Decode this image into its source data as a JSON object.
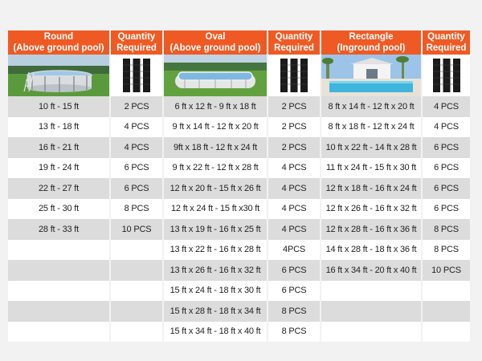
{
  "headers": [
    {
      "line1": "Round",
      "line2": "(Above ground pool)"
    },
    {
      "line1": "Quantity",
      "line2": "Required"
    },
    {
      "line1": "Oval",
      "line2": "(Above ground pool)"
    },
    {
      "line1": "Quantity",
      "line2": "Required"
    },
    {
      "line1": "Rectangle",
      "line2": "(Inground pool)"
    },
    {
      "line1": "Quantity",
      "line2": "Required"
    }
  ],
  "images": [
    "round-pool-photo",
    "solar-panel-icon",
    "oval-pool-photo",
    "solar-panel-icon",
    "rectangle-pool-photo",
    "solar-panel-icon"
  ],
  "colors": {
    "header": "#ef5a24",
    "row_shaded": "#dcdcdc",
    "row_plain": "#ffffff"
  },
  "rows": [
    [
      "10 ft - 15 ft",
      "2 PCS",
      "6 ft x 12 ft - 9 ft x 18 ft",
      "2 PCS",
      "8 ft x 14 ft - 12 ft x 20 ft",
      "4 PCS"
    ],
    [
      "13 ft - 18 ft",
      "4 PCS",
      "9 ft x 14 ft - 12 ft x 20 ft",
      "2 PCS",
      "8 ft x 18 ft - 12 ft x 24 ft",
      "4 PCS"
    ],
    [
      "16 ft - 21 ft",
      "4 PCS",
      "9ft x 18 ft - 12 ft x 24 ft",
      "2 PCS",
      "10 ft x 22 ft - 14 ft x 28 ft",
      "6 PCS"
    ],
    [
      "19 ft - 24 ft",
      "6 PCS",
      "9 ft x 22 ft - 12 ft x 28 ft",
      "4 PCS",
      "11 ft x 24 ft - 15 ft x 30 ft",
      "6 PCS"
    ],
    [
      "22 ft - 27 ft",
      "6 PCS",
      "12 ft x 20 ft - 15 ft x 26 ft",
      "4 PCS",
      "12 ft x 18 ft - 16 ft x 24 ft",
      "6 PCS"
    ],
    [
      "25 ft - 30 ft",
      "8 PCS",
      "12 ft x 24 ft - 15 ft x30 ft",
      "4 PCS",
      "12 ft x 26 ft - 16 ft x 32 ft",
      "6 PCS"
    ],
    [
      "28 ft - 33 ft",
      "10 PCS",
      "13 ft x 19 ft - 16 ft x 25 ft",
      "4 PCS",
      "12 ft x 28 ft - 16 ft x 36 ft",
      "8 PCS"
    ],
    [
      "",
      "",
      "13 ft x 22 ft - 16 ft x 28 ft",
      "4PCS",
      "14 ft x 28 ft - 18 ft x 36 ft",
      "8 PCS"
    ],
    [
      "",
      "",
      "13 ft x 26 ft - 16 ft x 32 ft",
      "6 PCS",
      "16 ft x 34 ft - 20 ft x 40 ft",
      "10 PCS"
    ],
    [
      "",
      "",
      "15 ft x 24 ft - 18 ft x 30 ft",
      "6 PCS",
      "",
      ""
    ],
    [
      "",
      "",
      "15 ft x 28 ft - 18 ft x 34 ft",
      "8 PCS",
      "",
      ""
    ],
    [
      "",
      "",
      "15 ft x 34 ft - 18 ft x 40 ft",
      "8 PCS",
      "",
      ""
    ]
  ]
}
